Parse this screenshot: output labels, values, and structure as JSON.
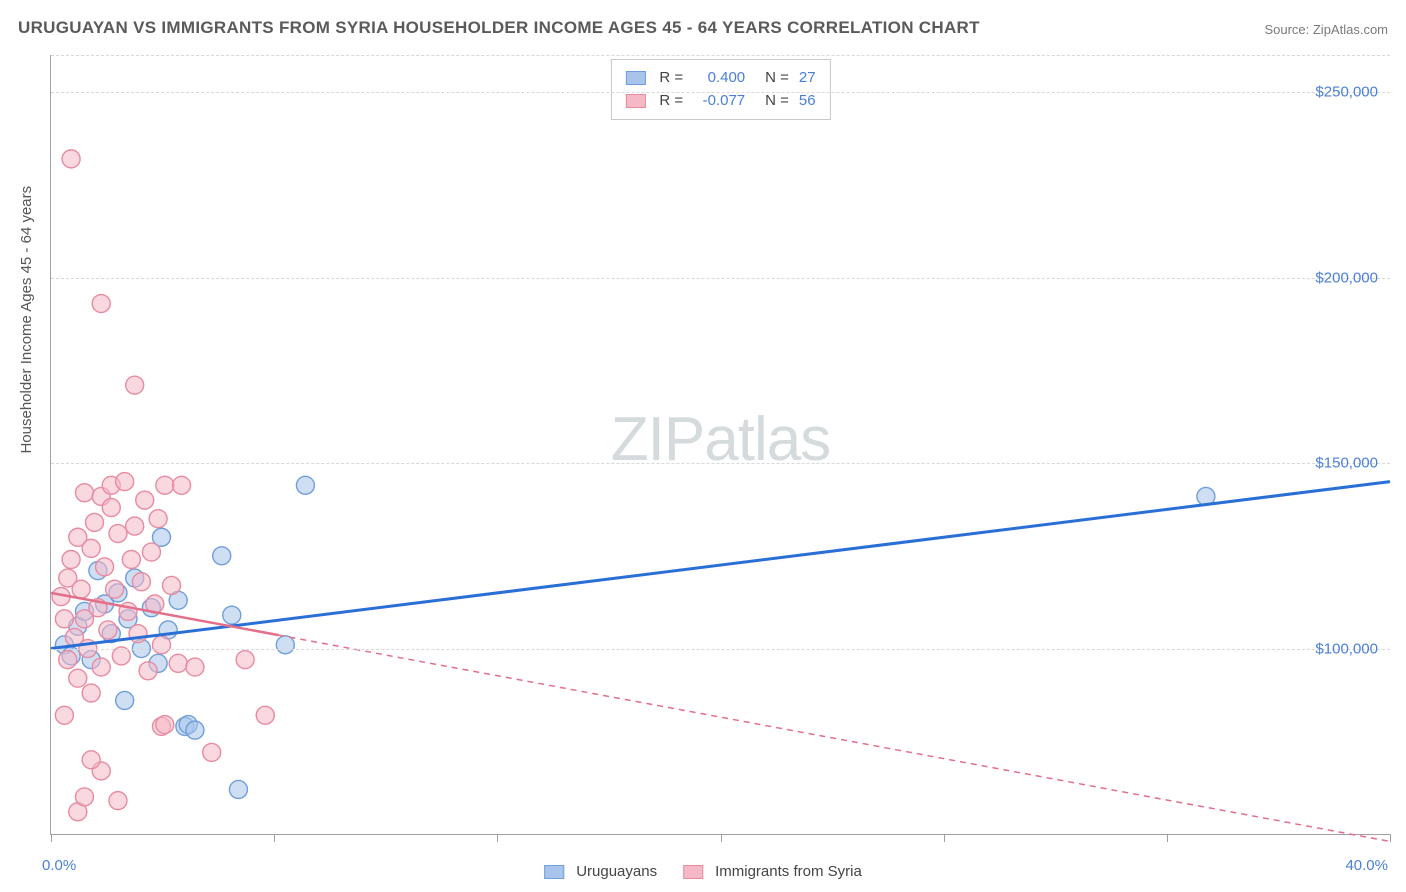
{
  "title": "URUGUAYAN VS IMMIGRANTS FROM SYRIA HOUSEHOLDER INCOME AGES 45 - 64 YEARS CORRELATION CHART",
  "source": "Source: ZipAtlas.com",
  "ylabel": "Householder Income Ages 45 - 64 years",
  "watermark_a": "ZIP",
  "watermark_b": "atlas",
  "chart": {
    "type": "scatter",
    "background_color": "#ffffff",
    "grid_color": "#d8d8d8",
    "axis_color": "#a0a0a0",
    "title_fontsize": 17,
    "title_color": "#5a5a5a",
    "label_fontsize": 15,
    "tick_color": "#4a7fd8",
    "xlim": [
      0,
      40
    ],
    "xlim_labels": [
      "0.0%",
      "40.0%"
    ],
    "xtick_positions": [
      0,
      6.67,
      13.33,
      20,
      26.67,
      33.33,
      40
    ],
    "ylim": [
      50000,
      260000
    ],
    "ytick_values": [
      100000,
      150000,
      200000,
      250000
    ],
    "ytick_labels": [
      "$100,000",
      "$150,000",
      "$200,000",
      "$250,000"
    ],
    "series": [
      {
        "key": "uruguayans",
        "label": "Uruguayans",
        "color_fill": "#a8c4ea",
        "color_stroke": "#6f9edb",
        "marker_radius": 9,
        "fill_opacity": 0.55,
        "line_color": "#2a6fd6",
        "line_width": 3,
        "line_dash": "none",
        "R": "0.400",
        "N": "27",
        "trend": {
          "x1": 0,
          "y1": 100000,
          "x2": 40,
          "y2": 145000
        },
        "points": [
          [
            0.4,
            101000
          ],
          [
            0.6,
            98000
          ],
          [
            0.8,
            106000
          ],
          [
            1.0,
            110000
          ],
          [
            1.2,
            97000
          ],
          [
            1.4,
            121000
          ],
          [
            1.6,
            112000
          ],
          [
            1.8,
            104000
          ],
          [
            2.0,
            115000
          ],
          [
            2.3,
            108000
          ],
          [
            2.5,
            119000
          ],
          [
            2.7,
            100000
          ],
          [
            3.0,
            111000
          ],
          [
            3.3,
            130000
          ],
          [
            3.5,
            105000
          ],
          [
            3.8,
            113000
          ],
          [
            4.0,
            79000
          ],
          [
            4.1,
            79500
          ],
          [
            4.3,
            78000
          ],
          [
            2.2,
            86000
          ],
          [
            3.2,
            96000
          ],
          [
            5.1,
            125000
          ],
          [
            5.4,
            109000
          ],
          [
            5.6,
            62000
          ],
          [
            7.0,
            101000
          ],
          [
            7.6,
            144000
          ],
          [
            34.5,
            141000
          ]
        ]
      },
      {
        "key": "syria",
        "label": "Immigrants from Syria",
        "color_fill": "#f5b8c5",
        "color_stroke": "#e88ba1",
        "marker_radius": 9,
        "fill_opacity": 0.55,
        "line_color": "#e36f8a",
        "line_width": 2.5,
        "line_dash": "6,5",
        "solid_until_x": 6.8,
        "R": "-0.077",
        "N": "56",
        "trend": {
          "x1": 0,
          "y1": 115000,
          "x2": 40,
          "y2": 48000
        },
        "points": [
          [
            0.3,
            114000
          ],
          [
            0.4,
            108000
          ],
          [
            0.5,
            119000
          ],
          [
            0.5,
            97000
          ],
          [
            0.6,
            124000
          ],
          [
            0.7,
            103000
          ],
          [
            0.8,
            130000
          ],
          [
            0.8,
            92000
          ],
          [
            0.9,
            116000
          ],
          [
            1.0,
            108000
          ],
          [
            1.0,
            142000
          ],
          [
            1.1,
            100000
          ],
          [
            1.2,
            127000
          ],
          [
            1.2,
            88000
          ],
          [
            1.3,
            134000
          ],
          [
            1.4,
            111000
          ],
          [
            1.5,
            141000
          ],
          [
            1.5,
            95000
          ],
          [
            1.6,
            122000
          ],
          [
            1.7,
            105000
          ],
          [
            1.8,
            138000
          ],
          [
            1.8,
            144000
          ],
          [
            1.9,
            116000
          ],
          [
            2.0,
            131000
          ],
          [
            2.1,
            98000
          ],
          [
            2.2,
            145000
          ],
          [
            2.3,
            110000
          ],
          [
            2.4,
            124000
          ],
          [
            2.5,
            133000
          ],
          [
            2.6,
            104000
          ],
          [
            2.7,
            118000
          ],
          [
            2.8,
            140000
          ],
          [
            2.9,
            94000
          ],
          [
            3.0,
            126000
          ],
          [
            3.1,
            112000
          ],
          [
            3.2,
            135000
          ],
          [
            3.3,
            101000
          ],
          [
            3.4,
            144000
          ],
          [
            3.6,
            117000
          ],
          [
            3.8,
            96000
          ],
          [
            3.9,
            144000
          ],
          [
            4.3,
            95000
          ],
          [
            0.6,
            232000
          ],
          [
            1.5,
            193000
          ],
          [
            1.5,
            67000
          ],
          [
            0.8,
            56000
          ],
          [
            1.0,
            60000
          ],
          [
            3.3,
            79000
          ],
          [
            3.4,
            79500
          ],
          [
            2.5,
            171000
          ],
          [
            4.8,
            72000
          ],
          [
            5.8,
            97000
          ],
          [
            6.4,
            82000
          ],
          [
            2.0,
            59000
          ],
          [
            1.2,
            70000
          ],
          [
            0.4,
            82000
          ]
        ]
      }
    ],
    "legend": {
      "R_prefix": "R =",
      "N_prefix": "N ="
    }
  }
}
